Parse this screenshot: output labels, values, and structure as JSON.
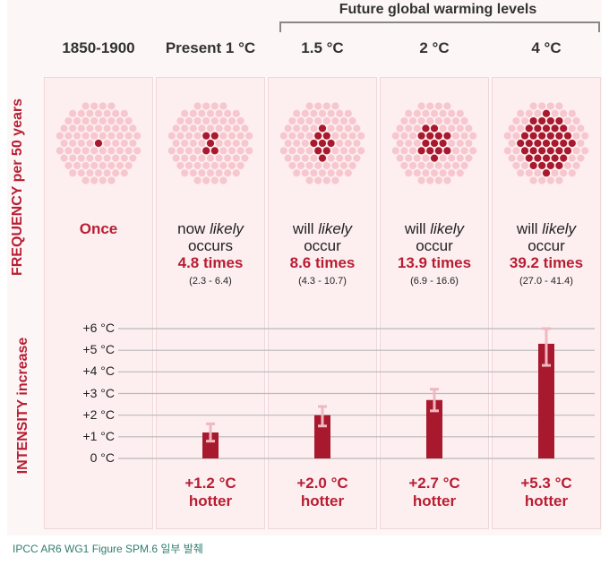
{
  "header": {
    "future_title": "Future global warming levels",
    "columns": [
      "1850-1900",
      "Present 1 °C",
      "1.5 °C",
      "2 °C",
      "4 °C"
    ]
  },
  "side_labels": {
    "frequency": "FREQUENCY per 50 years",
    "intensity": "INTENSITY increase"
  },
  "frequency": [
    {
      "once": "Once",
      "filled": 1
    },
    {
      "line1_a": "now ",
      "line1_b": "likely",
      "line2": "occurs",
      "times": "4.8 times",
      "range": "(2.3 - 6.4)",
      "filled": 5
    },
    {
      "line1_a": "will ",
      "line1_b": "likely",
      "line2": "occur",
      "times": "8.6 times",
      "range": "(4.3 - 10.7)",
      "filled": 9
    },
    {
      "line1_a": "will ",
      "line1_b": "likely",
      "line2": "occur",
      "times": "13.9 times",
      "range": "(6.9 - 16.6)",
      "filled": 14
    },
    {
      "line1_a": "will ",
      "line1_b": "likely",
      "line2": "occur",
      "times": "39.2 times",
      "range": "(27.0 - 41.4)",
      "filled": 39
    }
  ],
  "hotter": [
    {
      "value": "",
      "word": ""
    },
    {
      "value": "+1.2 °C",
      "word": "hotter"
    },
    {
      "value": "+2.0 °C",
      "word": "hotter"
    },
    {
      "value": "+2.7 °C",
      "word": "hotter"
    },
    {
      "value": "+5.3 °C",
      "word": "hotter"
    }
  ],
  "chart_data": {
    "type": "bar",
    "categories": [
      "1850-1900",
      "Present 1 °C",
      "1.5 °C",
      "2 °C",
      "4 °C"
    ],
    "values": [
      0,
      1.2,
      2.0,
      2.7,
      5.3
    ],
    "error_low": [
      null,
      0.8,
      1.5,
      2.2,
      4.3
    ],
    "error_high": [
      null,
      1.6,
      2.4,
      3.2,
      6.0
    ],
    "ylabel": "INTENSITY increase",
    "yticks": [
      "+6 °C",
      "+5 °C",
      "+4 °C",
      "+3 °C",
      "+2 °C",
      "+1 °C",
      "0 °C"
    ],
    "ylim": [
      0,
      6
    ],
    "grid": true,
    "bar_color": "#a8192e",
    "error_color": "#f0b8c0"
  },
  "colors": {
    "accent": "#b81e33",
    "dot_filled": "#a8192e",
    "dot_empty": "#f7c7cf"
  },
  "caption": "IPCC AR6 WG1 Figure SPM.6 일부 발췌"
}
